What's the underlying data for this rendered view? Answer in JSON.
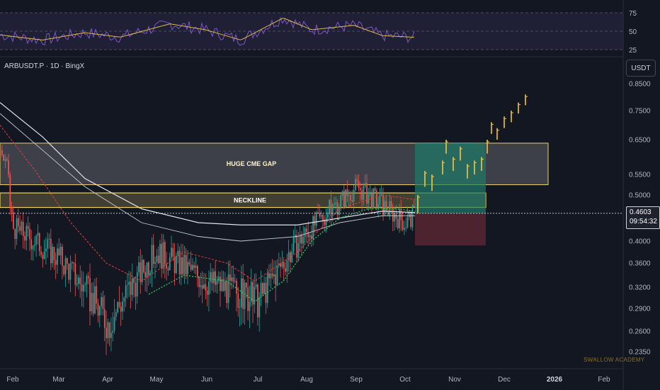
{
  "header": {
    "ticker": "ARBUSDT.P · 1D · BingX",
    "currency_button": "USDT"
  },
  "oscillator": {
    "tick_labels": [
      "75",
      "50",
      "25"
    ],
    "tick_values": [
      75,
      50,
      25
    ]
  },
  "annotations": {
    "gap_label": "HUGE CME GAP",
    "neckline_label": "NECKLINE",
    "watermark": "SWALLOW ACADEMY"
  },
  "current_price": {
    "price": "0.4603",
    "countdown": "09:54:32"
  },
  "colors": {
    "background": "#131722",
    "up_candle": "#26a69a",
    "down_candle": "#ef5350",
    "projection": "#f5c542",
    "gap_zone_border": "#e8d36a",
    "target_zone": "#1f7a6a",
    "stop_zone": "#6b2a35",
    "rsi_line": "#7e57c2",
    "rsi_ma": "#e0b84a"
  },
  "chart_data": {
    "type": "candlestick",
    "symbol": "ARBUSDT.P",
    "interval": "1D",
    "exchange": "BingX",
    "price_axis_labels": [
      "0.8500",
      "0.7500",
      "0.6500",
      "0.5500",
      "0.5000",
      "0.4000",
      "0.3600",
      "0.3200",
      "0.2900",
      "0.2600",
      "0.2350"
    ],
    "price_axis_values": [
      0.85,
      0.75,
      0.65,
      0.55,
      0.5,
      0.4,
      0.36,
      0.32,
      0.29,
      0.26,
      0.235
    ],
    "time_axis_labels": [
      "Feb",
      "Mar",
      "Apr",
      "May",
      "Jun",
      "Jul",
      "Aug",
      "Sep",
      "Oct",
      "Nov",
      "Dec",
      "2026",
      "Feb"
    ],
    "time_axis_bold": "2026",
    "zones": [
      {
        "name": "HUGE CME GAP",
        "price_low": 0.525,
        "price_high": 0.64
      },
      {
        "name": "NECKLINE",
        "price_low": 0.473,
        "price_high": 0.505
      },
      {
        "name": "target",
        "price_low": 0.4603,
        "price_high": 0.64
      },
      {
        "name": "stop",
        "price_low": 0.392,
        "price_high": 0.4603
      }
    ],
    "anchors": [
      {
        "month": "Feb",
        "close": 0.43
      },
      {
        "month": "Mar",
        "close": 0.37
      },
      {
        "month": "Apr",
        "close": 0.27
      },
      {
        "month": "May",
        "close": 0.38
      },
      {
        "month": "Jun",
        "close": 0.33
      },
      {
        "month": "Jul",
        "close": 0.3
      },
      {
        "month": "Aug",
        "close": 0.42
      },
      {
        "month": "Sep",
        "close": 0.52
      },
      {
        "month": "Oct",
        "close": 0.44
      },
      {
        "month": "Oct-end",
        "close": 0.4603
      }
    ],
    "projection": {
      "start_price": 0.4603,
      "end_price": 0.78,
      "end_label_month": "Dec"
    },
    "rsi_scale": [
      25,
      75
    ]
  }
}
